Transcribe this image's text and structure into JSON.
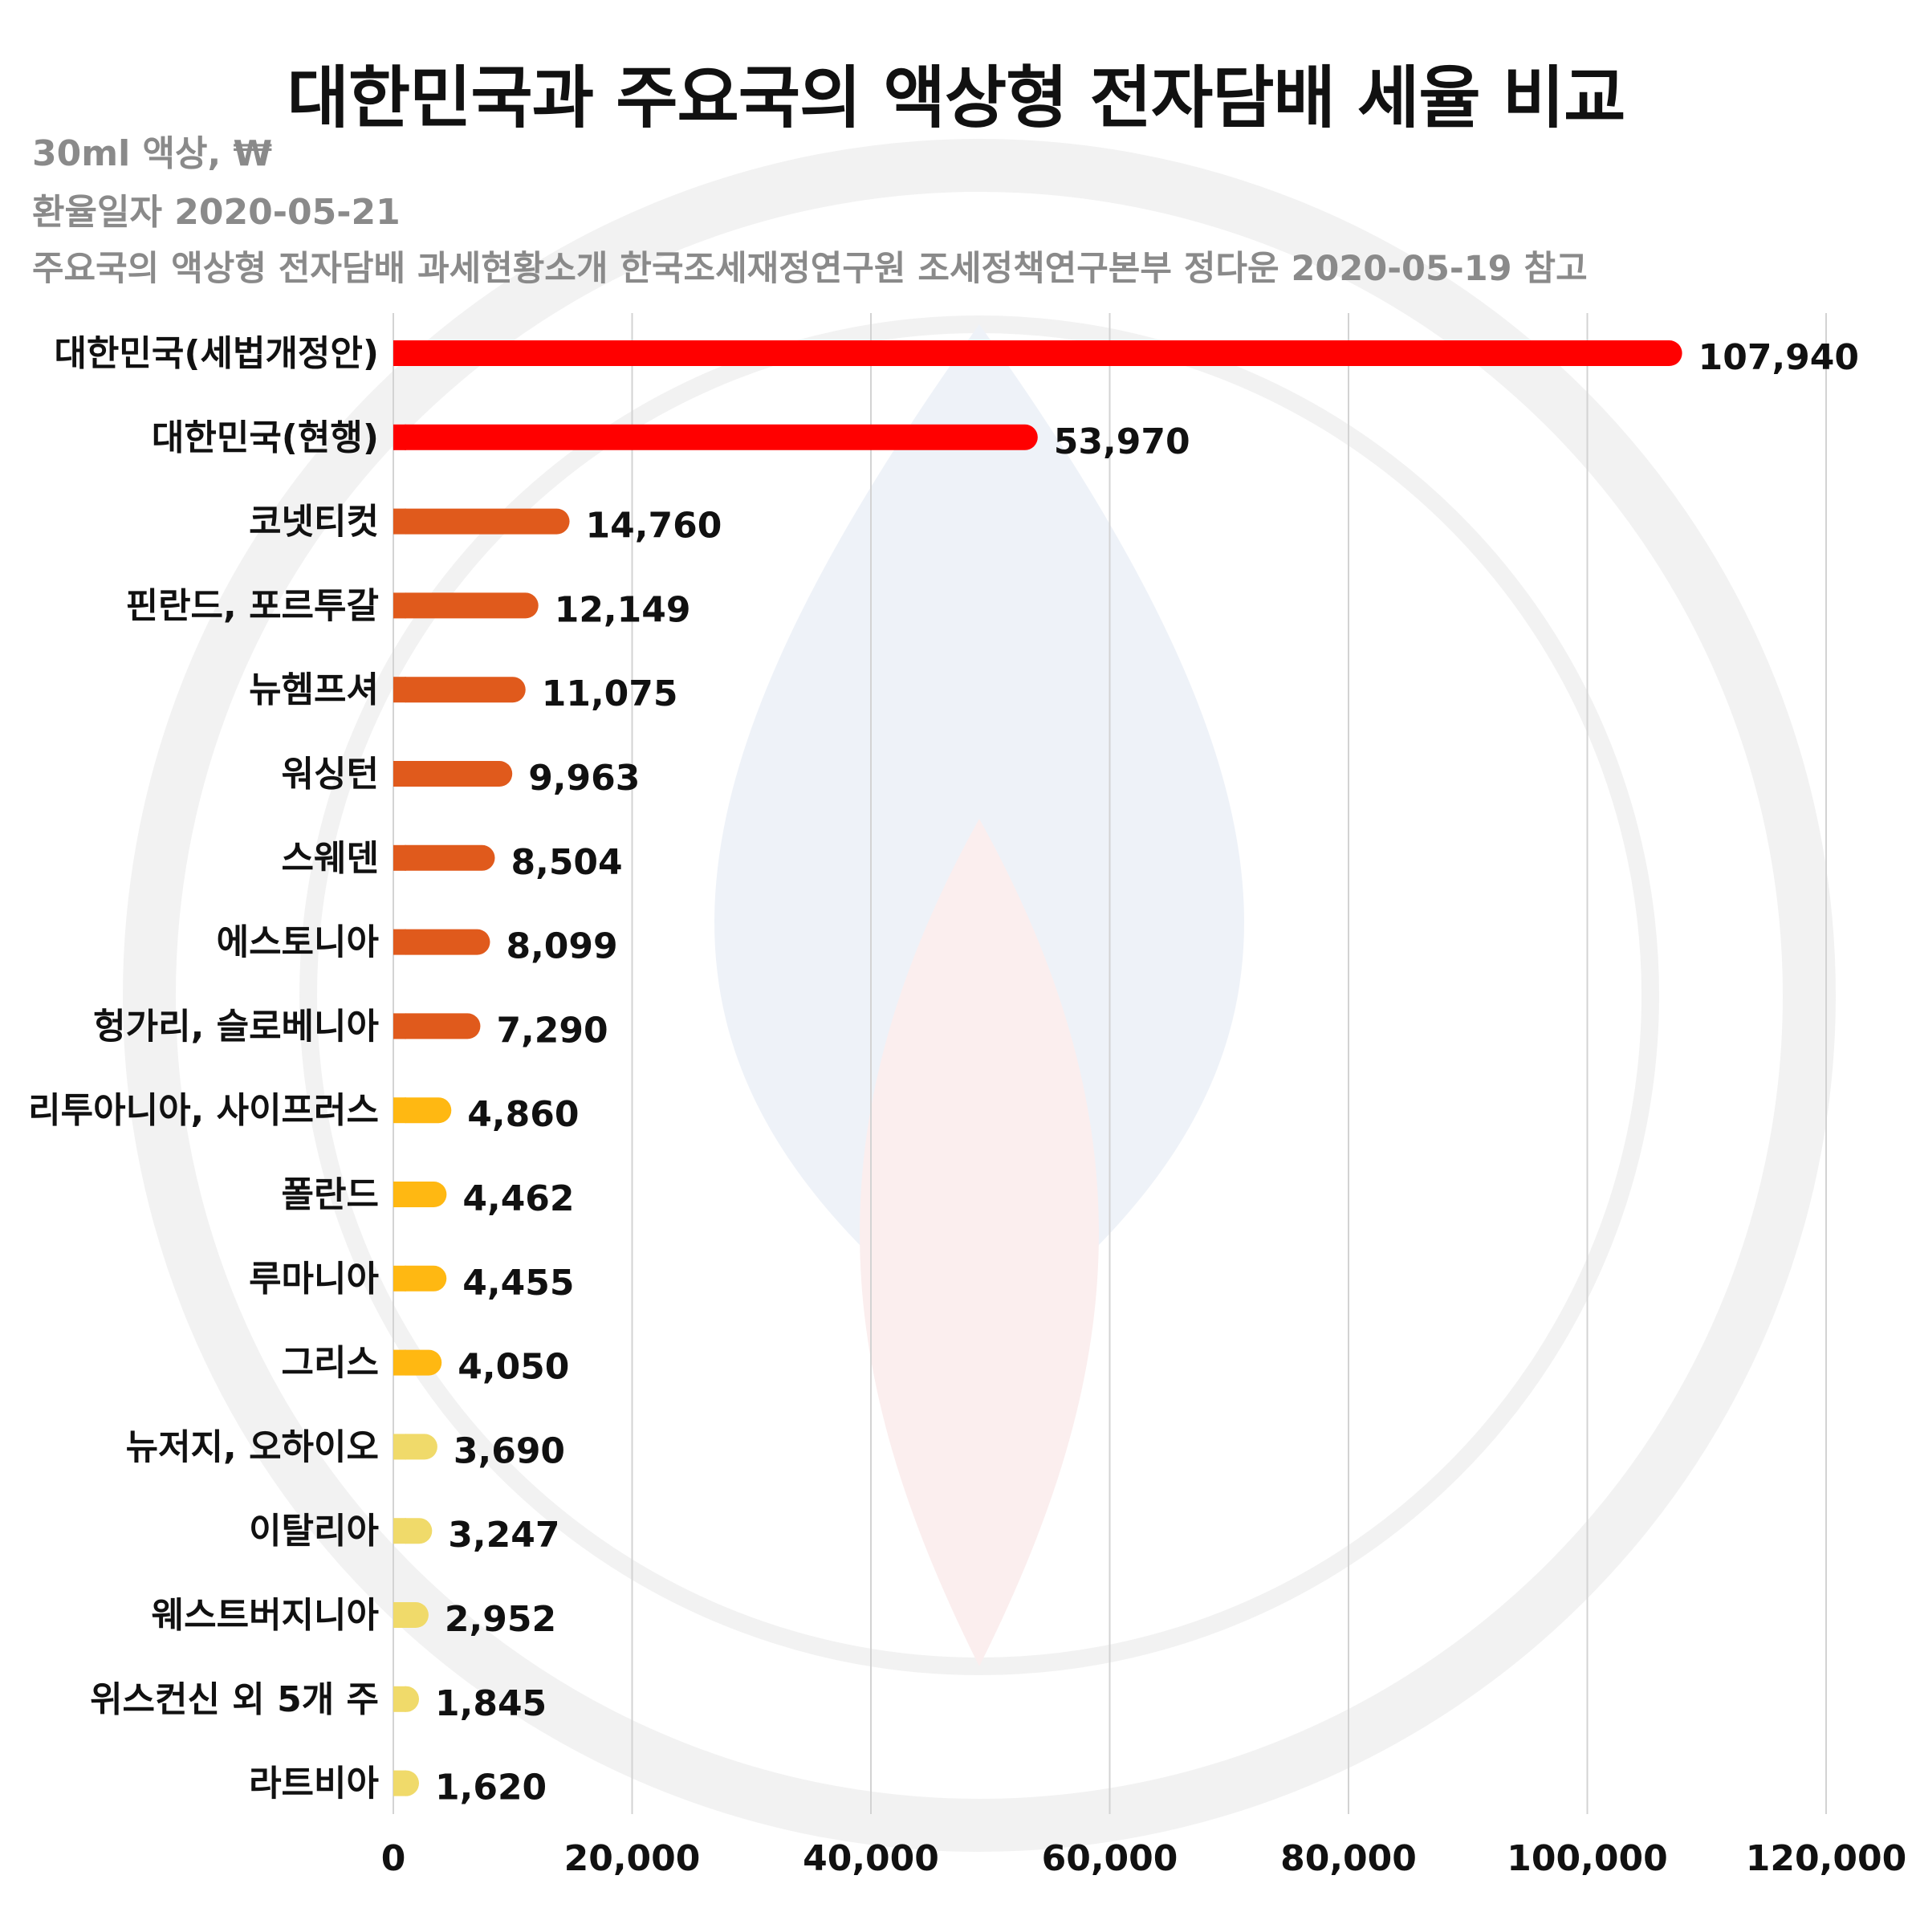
{
  "chart_data": {
    "type": "bar",
    "orientation": "horizontal",
    "title": "대한민국과 주요국의 액상형 전자담배 세율 비교",
    "subtitles": [
      "30ml 액상, ₩",
      "환율일자 2020-05-21",
      "주요국의 액상형 전자담배 과세현황소개 한국조세재정연구원 조세정책연구본부 정다운 2020-05-19 참고"
    ],
    "categories": [
      "대한민국(세법개정안)",
      "대한민국(현행)",
      "코넷티컷",
      "핀란드, 포르투갈",
      "뉴헴프셔",
      "워싱턴",
      "스웨덴",
      "에스토니아",
      "헝가리, 슬로베니아",
      "리투아니아, 사이프러스",
      "폴란드",
      "루마니아",
      "그리스",
      "뉴저지, 오하이오",
      "이탈리아",
      "웨스트버지니아",
      "위스컨신 외 5개 주",
      "라트비아"
    ],
    "values": [
      107940,
      53970,
      14760,
      12149,
      11075,
      9963,
      8504,
      8099,
      7290,
      4860,
      4462,
      4455,
      4050,
      3690,
      3247,
      2952,
      1845,
      1620
    ],
    "value_labels": [
      "107,940",
      "53,970",
      "14,760",
      "12,149",
      "11,075",
      "9,963",
      "8,504",
      "8,099",
      "7,290",
      "4,860",
      "4,462",
      "4,455",
      "4,050",
      "3,690",
      "3,247",
      "2,952",
      "1,845",
      "1,620"
    ],
    "bar_colors": [
      "#ff0000",
      "#ff0000",
      "#e05a1c",
      "#e05a1c",
      "#e05a1c",
      "#e05a1c",
      "#e05a1c",
      "#e05a1c",
      "#e05a1c",
      "#ffb812",
      "#ffb812",
      "#ffb812",
      "#ffb812",
      "#f0da6a",
      "#f0da6a",
      "#f0da6a",
      "#f0da6a",
      "#f0da6a"
    ],
    "xlim": [
      0,
      120000
    ],
    "x_ticks": [
      0,
      20000,
      40000,
      60000,
      80000,
      100000,
      120000
    ],
    "x_tick_labels": [
      "0",
      "20,000",
      "40,000",
      "60,000",
      "80,000",
      "100,000",
      "120,000"
    ],
    "grid": true,
    "legend": "none"
  }
}
